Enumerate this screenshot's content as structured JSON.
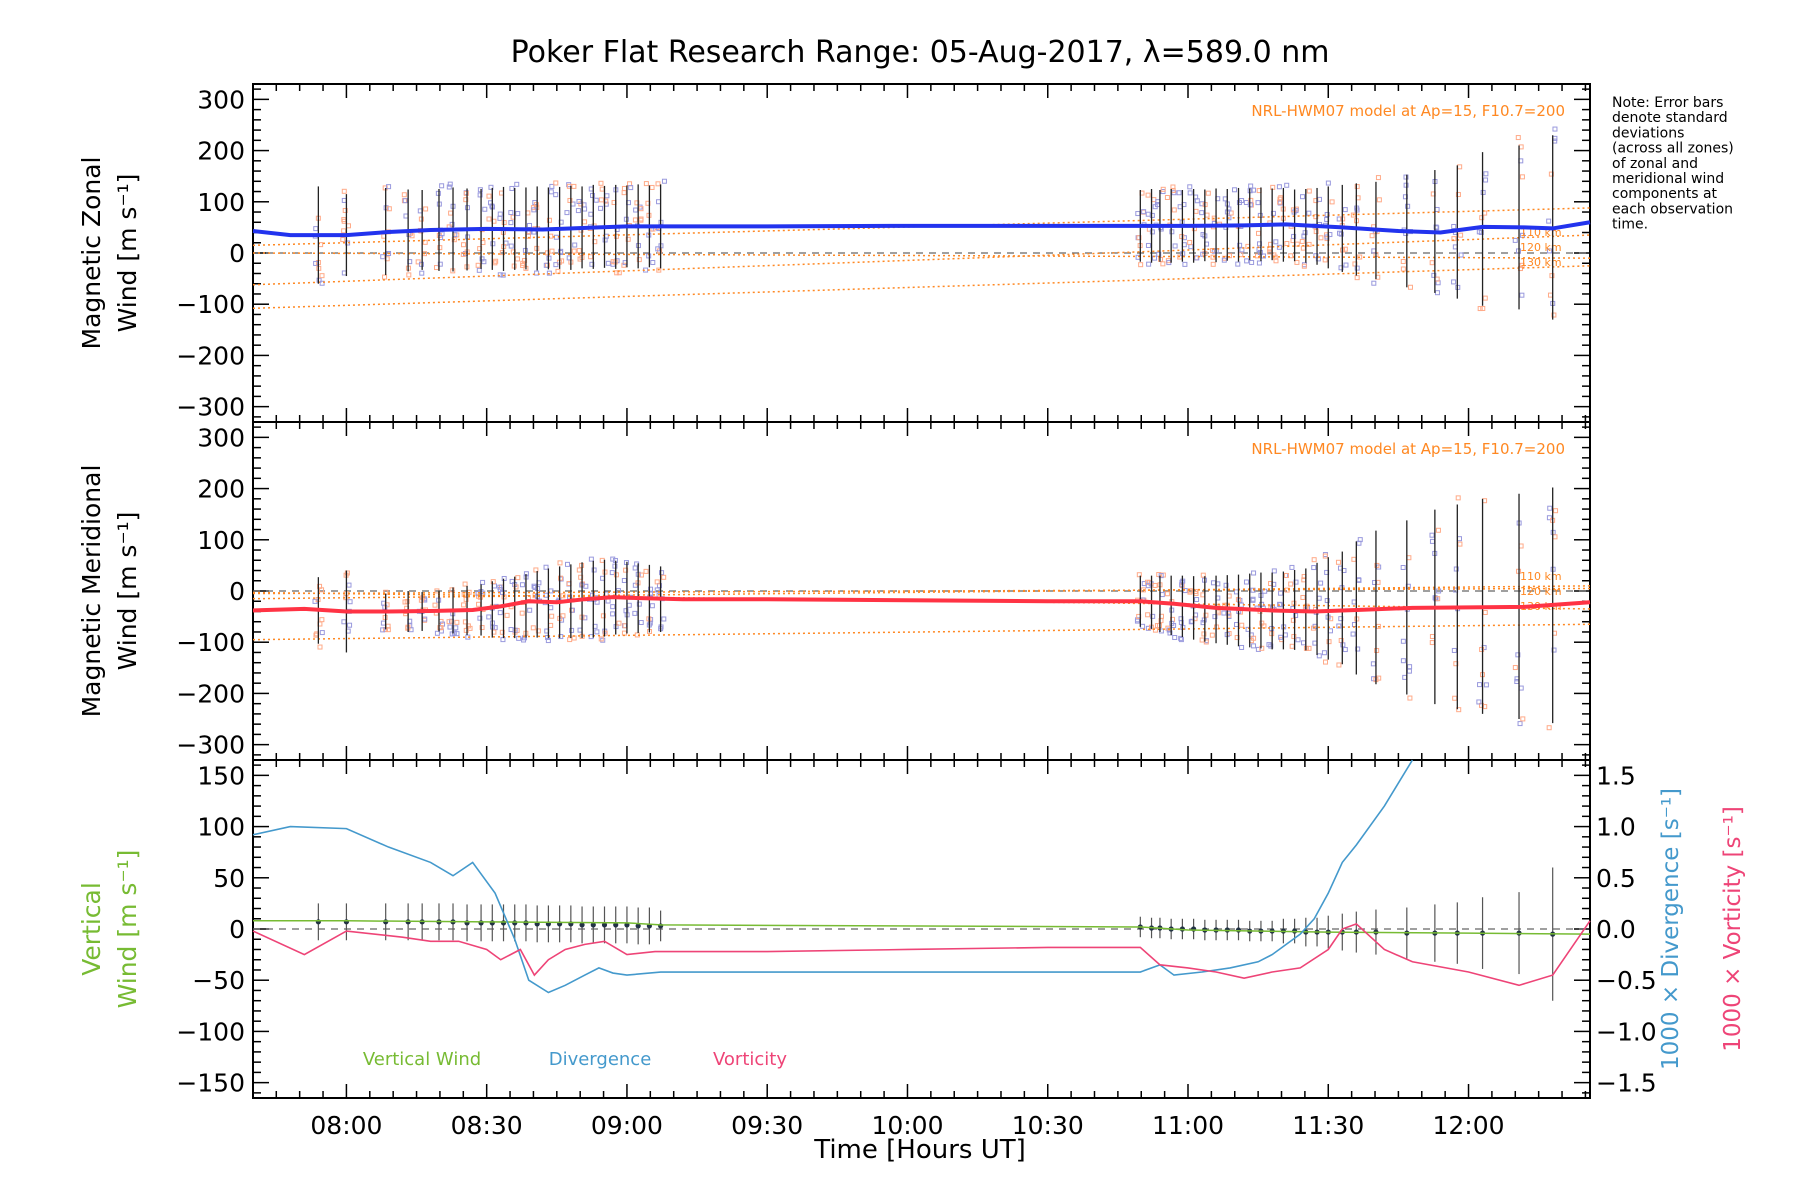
{
  "title": "Poker Flat Research Range: 05-Aug-2017, λ=589.0 nm",
  "note": [
    "Note: Error bars",
    "denote standard",
    "deviations",
    "(across all zones)",
    "of zonal and",
    "meridional wind",
    "components at",
    "each observation",
    "time."
  ],
  "xlabel": "Time [Hours UT]",
  "colors": {
    "zonal": "#2233ee",
    "meridional": "#ff3344",
    "vertical": "#77bb33",
    "divergence": "#4499cc",
    "vorticity": "#ee4477",
    "model": "#ff8822",
    "zone_points": "#9999dd",
    "zone_points_warm": "#ffaa88"
  },
  "chart_data": [
    {
      "type": "line",
      "panel": "zonal",
      "ylabel_lines": [
        "Magnetic Zonal",
        "Wind [m s⁻¹]"
      ],
      "xlim": [
        7.667,
        12.433
      ],
      "ylim": [
        -330,
        330
      ],
      "x_ticks": [
        "08:00",
        "08:30",
        "09:00",
        "09:30",
        "10:00",
        "10:30",
        "11:00",
        "11:30",
        "12:00"
      ],
      "x_tick_values": [
        8.0,
        8.5,
        9.0,
        9.5,
        10.0,
        10.5,
        11.0,
        11.5,
        12.0
      ],
      "y_ticks": [
        300,
        200,
        100,
        0,
        -100,
        -200,
        -300
      ],
      "model_label": "NRL-HWM07 model at Ap=15, F10.7=200",
      "model_lines": [
        {
          "name": "110 km",
          "x": [
            7.667,
            12.433
          ],
          "y": [
            -62,
            35
          ]
        },
        {
          "name": "120 km",
          "x": [
            7.667,
            12.433
          ],
          "y": [
            -108,
            -25
          ]
        },
        {
          "name": "130 km",
          "x": [
            7.667,
            12.433
          ],
          "y": [
            0,
            -10
          ]
        }
      ],
      "model_lines_2": [
        {
          "x": [
            7.667,
            12.433
          ],
          "y": [
            15,
            88
          ]
        }
      ],
      "series": [
        {
          "name": "Magnetic Zonal Wind",
          "x": [
            7.667,
            7.8,
            8.0,
            8.15,
            8.3,
            8.5,
            8.7,
            8.9,
            9.0,
            9.2,
            9.5,
            10.0,
            10.5,
            10.83,
            11.0,
            11.2,
            11.35,
            11.55,
            11.75,
            11.9,
            12.05,
            12.2,
            12.3,
            12.433
          ],
          "y": [
            43,
            35,
            35,
            41,
            45,
            47,
            46,
            50,
            52,
            52,
            52,
            53,
            53,
            53,
            53,
            54,
            56,
            50,
            43,
            40,
            51,
            50,
            48,
            60
          ]
        }
      ],
      "error_bars": {
        "x": [
          7.9,
          8.0,
          8.14,
          8.22,
          8.27,
          8.33,
          8.38,
          8.43,
          8.48,
          8.52,
          8.56,
          8.6,
          8.64,
          8.68,
          8.72,
          8.76,
          8.8,
          8.84,
          8.88,
          8.92,
          8.96,
          9.0,
          9.04,
          9.08,
          9.12,
          10.83,
          10.87,
          10.9,
          10.94,
          10.98,
          11.02,
          11.06,
          11.1,
          11.14,
          11.18,
          11.22,
          11.26,
          11.3,
          11.34,
          11.38,
          11.42,
          11.46,
          11.5,
          11.55,
          11.6,
          11.67,
          11.78,
          11.88,
          11.96,
          12.05,
          12.18,
          12.3
        ],
        "y": [
          35,
          35,
          42,
          44,
          45,
          45,
          46,
          46,
          47,
          47,
          47,
          47,
          48,
          48,
          48,
          49,
          49,
          50,
          51,
          51,
          51,
          52,
          52,
          52,
          52,
          53,
          53,
          53,
          53,
          53,
          53,
          54,
          54,
          55,
          55,
          56,
          56,
          56,
          55,
          54,
          53,
          52,
          50,
          48,
          46,
          44,
          43,
          42,
          41,
          47,
          50,
          50
        ],
        "err": [
          95,
          80,
          85,
          80,
          78,
          80,
          82,
          80,
          78,
          80,
          82,
          80,
          80,
          82,
          80,
          80,
          82,
          80,
          82,
          80,
          82,
          80,
          82,
          80,
          82,
          70,
          72,
          70,
          72,
          70,
          72,
          70,
          72,
          70,
          72,
          70,
          72,
          70,
          72,
          70,
          72,
          75,
          80,
          85,
          90,
          95,
          110,
          120,
          130,
          150,
          160,
          180
        ]
      }
    },
    {
      "type": "line",
      "panel": "meridional",
      "ylabel_lines": [
        "Magnetic Meridional",
        "Wind [m s⁻¹]"
      ],
      "xlim": [
        7.667,
        12.433
      ],
      "ylim": [
        -330,
        330
      ],
      "x_ticks": [
        "08:00",
        "08:30",
        "09:00",
        "09:30",
        "10:00",
        "10:30",
        "11:00",
        "11:30",
        "12:00"
      ],
      "y_ticks": [
        300,
        200,
        100,
        0,
        -100,
        -200,
        -300
      ],
      "model_label": "NRL-HWM07 model at Ap=15, F10.7=200",
      "model_lines": [
        {
          "name": "110 km",
          "x": [
            7.667,
            12.433
          ],
          "y": [
            -15,
            10
          ]
        },
        {
          "name": "120 km",
          "x": [
            7.667,
            12.433
          ],
          "y": [
            -95,
            -65
          ]
        },
        {
          "name": "130 km",
          "x": [
            7.667,
            12.433
          ],
          "y": [
            -5,
            5
          ]
        }
      ],
      "model_lines_2": [
        {
          "x": [
            7.667,
            12.433
          ],
          "y": [
            -3,
            -35
          ]
        }
      ],
      "series": [
        {
          "name": "Magnetic Meridional Wind",
          "x": [
            7.667,
            7.85,
            8.0,
            8.15,
            8.3,
            8.45,
            8.55,
            8.65,
            8.75,
            8.85,
            8.95,
            9.05,
            9.2,
            9.5,
            10.0,
            10.5,
            10.83,
            10.95,
            11.1,
            11.3,
            11.45,
            11.6,
            11.8,
            12.0,
            12.2,
            12.433
          ],
          "y": [
            -38,
            -35,
            -40,
            -40,
            -39,
            -37,
            -30,
            -20,
            -22,
            -16,
            -12,
            -14,
            -16,
            -16,
            -18,
            -20,
            -20,
            -25,
            -33,
            -38,
            -40,
            -37,
            -33,
            -32,
            -31,
            -22
          ]
        }
      ],
      "error_bars": {
        "x": [
          7.9,
          8.0,
          8.14,
          8.22,
          8.27,
          8.33,
          8.38,
          8.43,
          8.48,
          8.52,
          8.56,
          8.6,
          8.64,
          8.68,
          8.72,
          8.76,
          8.8,
          8.84,
          8.88,
          8.92,
          8.96,
          9.0,
          9.04,
          9.08,
          9.12,
          10.83,
          10.87,
          10.9,
          10.94,
          10.98,
          11.02,
          11.06,
          11.1,
          11.14,
          11.18,
          11.22,
          11.26,
          11.3,
          11.34,
          11.38,
          11.42,
          11.46,
          11.5,
          11.55,
          11.6,
          11.67,
          11.78,
          11.88,
          11.96,
          12.05,
          12.18,
          12.3
        ],
        "y": [
          -38,
          -40,
          -40,
          -40,
          -40,
          -39,
          -38,
          -38,
          -37,
          -36,
          -34,
          -32,
          -29,
          -26,
          -24,
          -22,
          -20,
          -18,
          -16,
          -14,
          -13,
          -13,
          -14,
          -15,
          -16,
          -20,
          -22,
          -25,
          -28,
          -30,
          -33,
          -35,
          -36,
          -37,
          -38,
          -38,
          -38,
          -39,
          -38,
          -37,
          -36,
          -35,
          -34,
          -33,
          -33,
          -32,
          -32,
          -31,
          -31,
          -30,
          -30,
          -28
        ],
        "err": [
          65,
          80,
          35,
          40,
          38,
          40,
          45,
          48,
          50,
          55,
          58,
          60,
          62,
          65,
          68,
          70,
          72,
          74,
          75,
          75,
          72,
          70,
          68,
          66,
          64,
          50,
          52,
          55,
          58,
          60,
          62,
          64,
          66,
          68,
          70,
          72,
          74,
          75,
          76,
          78,
          80,
          90,
          100,
          110,
          130,
          150,
          170,
          190,
          200,
          210,
          220,
          230
        ]
      }
    },
    {
      "type": "line",
      "panel": "vertical",
      "ylabel_lines": [
        "Vertical",
        "Wind [m s⁻¹]"
      ],
      "right_label_div": "1000 × Divergence [s⁻¹]",
      "right_label_vor": "1000 × Vorticity [s⁻¹]",
      "xlim": [
        7.667,
        12.433
      ],
      "ylim": [
        -165,
        165
      ],
      "y2lim": [
        -1.65,
        1.65
      ],
      "x_ticks": [
        "08:00",
        "08:30",
        "09:00",
        "09:30",
        "10:00",
        "10:30",
        "11:00",
        "11:30",
        "12:00"
      ],
      "y_ticks": [
        150,
        100,
        50,
        0,
        -50,
        -100,
        -150
      ],
      "y2_ticks": [
        "1.5",
        "1.0",
        "0.5",
        "0.0",
        "−0.5",
        "−1.0",
        "−1.5"
      ],
      "y2_tick_values": [
        1.5,
        1.0,
        0.5,
        0.0,
        -0.5,
        -1.0,
        -1.5
      ],
      "legend": [
        "Vertical Wind",
        "Divergence",
        "Vorticity"
      ],
      "series": [
        {
          "name": "Vertical Wind",
          "x": [
            7.667,
            8.0,
            8.5,
            9.0,
            9.12,
            10.83,
            11.0,
            11.5,
            12.0,
            12.433
          ],
          "y": [
            8,
            8,
            7,
            6,
            4,
            2,
            -1,
            -3,
            -4,
            -5
          ]
        },
        {
          "name": "Divergence",
          "axis": "right",
          "x": [
            7.667,
            7.8,
            8.0,
            8.15,
            8.3,
            8.38,
            8.45,
            8.53,
            8.6,
            8.65,
            8.72,
            8.78,
            8.85,
            8.9,
            8.95,
            9.0,
            9.12,
            9.5,
            10.0,
            10.5,
            10.83,
            10.9,
            10.95,
            11.05,
            11.15,
            11.25,
            11.3,
            11.35,
            11.4,
            11.45,
            11.5,
            11.55,
            11.6,
            11.7,
            11.8
          ],
          "y": [
            0.92,
            1.0,
            0.98,
            0.8,
            0.65,
            0.52,
            0.65,
            0.35,
            -0.1,
            -0.5,
            -0.62,
            -0.55,
            -0.45,
            -0.38,
            -0.43,
            -0.45,
            -0.42,
            -0.42,
            -0.42,
            -0.42,
            -0.42,
            -0.35,
            -0.45,
            -0.42,
            -0.38,
            -0.32,
            -0.25,
            -0.15,
            -0.05,
            0.1,
            0.35,
            0.65,
            0.82,
            1.2,
            1.65
          ]
        },
        {
          "name": "Vorticity",
          "axis": "right",
          "x": [
            7.667,
            7.85,
            8.0,
            8.2,
            8.3,
            8.4,
            8.5,
            8.55,
            8.62,
            8.67,
            8.72,
            8.78,
            8.85,
            8.92,
            9.0,
            9.1,
            9.2,
            9.5,
            10.0,
            10.5,
            10.83,
            10.9,
            11.0,
            11.1,
            11.2,
            11.3,
            11.4,
            11.5,
            11.55,
            11.6,
            11.7,
            11.8,
            12.0,
            12.18,
            12.3,
            12.433
          ],
          "y": [
            -0.02,
            -0.25,
            -0.02,
            -0.08,
            -0.12,
            -0.12,
            -0.2,
            -0.3,
            -0.2,
            -0.45,
            -0.3,
            -0.2,
            -0.15,
            -0.12,
            -0.25,
            -0.22,
            -0.22,
            -0.22,
            -0.2,
            -0.18,
            -0.18,
            -0.35,
            -0.38,
            -0.42,
            -0.48,
            -0.42,
            -0.38,
            -0.2,
            0.0,
            0.05,
            -0.2,
            -0.32,
            -0.42,
            -0.55,
            -0.45,
            0.08
          ]
        }
      ],
      "error_bars": {
        "x": [
          7.9,
          8.0,
          8.14,
          8.22,
          8.27,
          8.33,
          8.38,
          8.43,
          8.48,
          8.52,
          8.56,
          8.6,
          8.64,
          8.68,
          8.72,
          8.76,
          8.8,
          8.84,
          8.88,
          8.92,
          8.96,
          9.0,
          9.04,
          9.08,
          9.12,
          10.83,
          10.87,
          10.9,
          10.94,
          10.98,
          11.02,
          11.06,
          11.1,
          11.14,
          11.18,
          11.22,
          11.26,
          11.3,
          11.34,
          11.38,
          11.42,
          11.46,
          11.5,
          11.55,
          11.6,
          11.67,
          11.78,
          11.88,
          11.96,
          12.05,
          12.18,
          12.3
        ],
        "y": [
          7,
          7,
          7,
          7,
          7,
          7,
          7,
          6,
          6,
          6,
          6,
          6,
          6,
          5,
          5,
          5,
          5,
          4,
          4,
          4,
          4,
          4,
          3,
          3,
          3,
          2,
          1,
          1,
          0,
          0,
          0,
          -1,
          -1,
          -1,
          -1,
          -2,
          -2,
          -2,
          -2,
          -2,
          -3,
          -3,
          -3,
          -3,
          -3,
          -3,
          -4,
          -4,
          -4,
          -4,
          -4,
          -5
        ],
        "err": [
          18,
          18,
          18,
          18,
          18,
          18,
          18,
          18,
          18,
          18,
          18,
          18,
          18,
          18,
          18,
          18,
          18,
          18,
          18,
          18,
          18,
          18,
          18,
          18,
          15,
          10,
          10,
          10,
          10,
          10,
          10,
          10,
          10,
          10,
          10,
          10,
          10,
          10,
          12,
          12,
          14,
          14,
          16,
          18,
          20,
          22,
          25,
          28,
          30,
          35,
          40,
          65
        ]
      }
    }
  ]
}
